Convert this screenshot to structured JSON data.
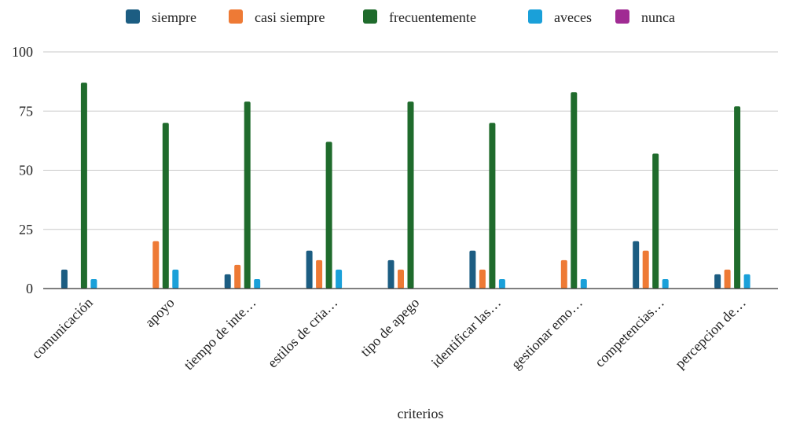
{
  "chart_data": {
    "type": "bar",
    "title": "",
    "xlabel": "criterios",
    "ylabel": "",
    "ylim": [
      0,
      100
    ],
    "yticks": [
      0,
      25,
      50,
      75,
      100
    ],
    "grid": true,
    "legend_position": "top",
    "categories": [
      "comunicación",
      "apoyo",
      "tiempo de inte…",
      "estilos de cria…",
      "tipo de apego",
      "identificar las…",
      "gestionar emo…",
      "competencias…",
      "percepcion de…"
    ],
    "series": [
      {
        "name": "siempre",
        "color": "#1c5d82",
        "values": [
          8,
          0,
          6,
          16,
          12,
          16,
          0,
          20,
          6
        ]
      },
      {
        "name": "casi siempre",
        "color": "#ee7a35",
        "values": [
          0,
          20,
          10,
          12,
          8,
          8,
          12,
          16,
          8
        ]
      },
      {
        "name": "frecuentemente",
        "color": "#1f6b2c",
        "values": [
          87,
          70,
          79,
          62,
          79,
          70,
          83,
          57,
          77
        ]
      },
      {
        "name": "aveces",
        "color": "#1aa0d9",
        "values": [
          4,
          8,
          4,
          8,
          0,
          4,
          4,
          4,
          6
        ]
      },
      {
        "name": "nunca",
        "color": "#a02b93",
        "values": [
          0,
          0,
          0,
          0,
          0,
          0,
          0,
          0,
          0
        ]
      }
    ]
  }
}
